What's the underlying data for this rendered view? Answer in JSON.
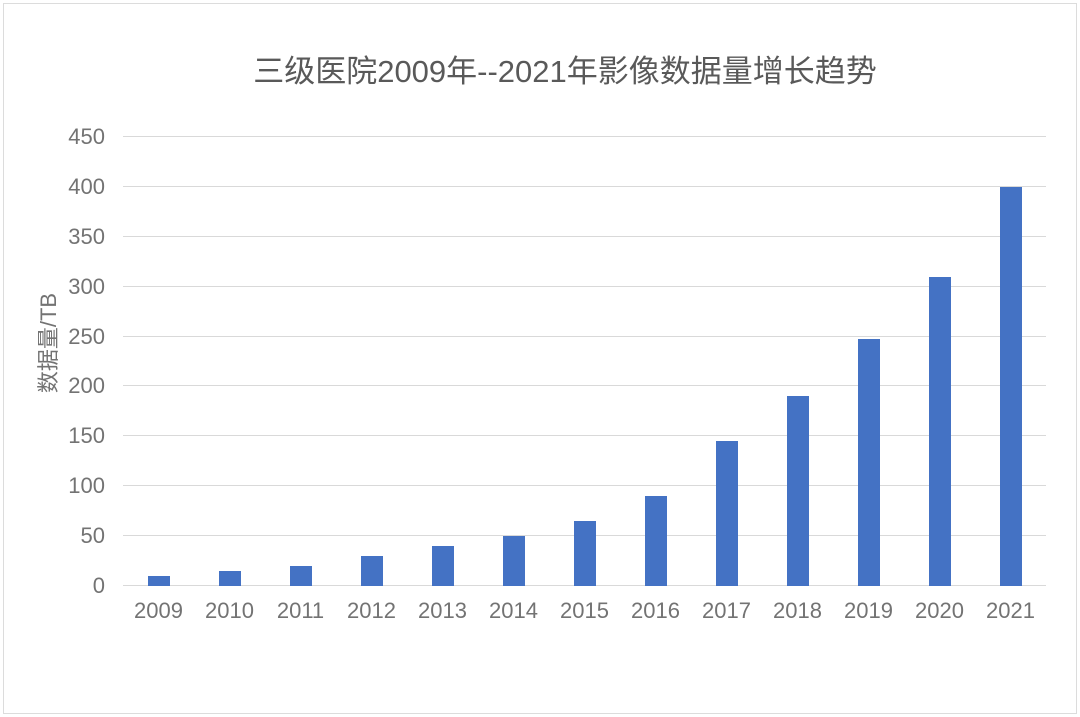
{
  "chart_data": {
    "type": "bar",
    "title": "三级医院2009年--2021年影像数据量增长趋势",
    "categories": [
      "2009",
      "2010",
      "2011",
      "2012",
      "2013",
      "2014",
      "2015",
      "2016",
      "2017",
      "2018",
      "2019",
      "2020",
      "2021"
    ],
    "values": [
      10,
      15,
      20,
      30,
      40,
      50,
      65,
      90,
      145,
      190,
      248,
      310,
      400
    ],
    "xlabel": "",
    "ylabel": "数据量/TB",
    "ylim": [
      0,
      450
    ],
    "ytick_step": 50,
    "grid": true,
    "legend": false,
    "bar_color": "#4472c4",
    "gridline_color": "#d9d9d9",
    "title_color": "#595959",
    "tick_label_color": "#737373"
  }
}
